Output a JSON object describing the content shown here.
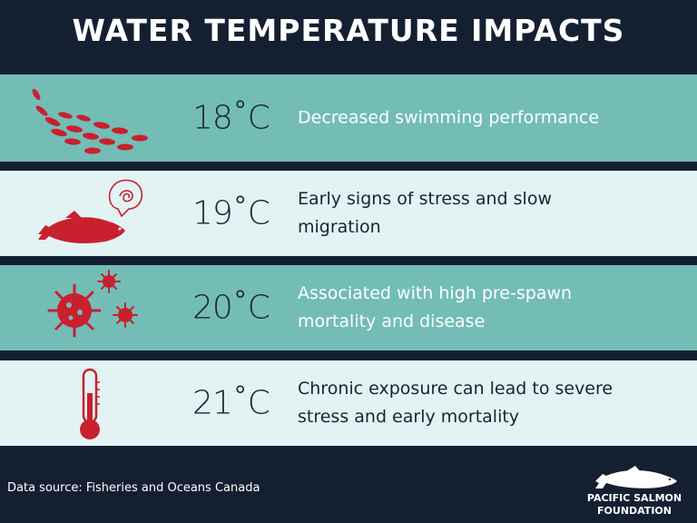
{
  "title": "WATER TEMPERATURE IMPACTS",
  "rows": [
    {
      "temp": "18˚C",
      "desc_lines": [
        "Decreased swimming performance"
      ],
      "icon": "fish-school-icon"
    },
    {
      "temp": "19˚C",
      "desc_lines": [
        "Early signs of stress and slow",
        "migration"
      ],
      "icon": "stressed-salmon-icon"
    },
    {
      "temp": "20˚C",
      "desc_lines": [
        "Associated with high pre-spawn",
        "mortality and disease"
      ],
      "icon": "virus-icon"
    },
    {
      "temp": "21˚C",
      "desc_lines": [
        "Chronic exposure can lead to severe",
        "stress and early mortality"
      ],
      "icon": "thermometer-icon"
    }
  ],
  "source": "Data source: Fisheries and Oceans Canada",
  "logo": {
    "line1": "PACIFIC SALMON",
    "line2": "FOUNDATION"
  },
  "colors": {
    "background": "#142032",
    "teal": "#73bdb6",
    "light": "#e3f3f4",
    "red": "#c8202f"
  }
}
